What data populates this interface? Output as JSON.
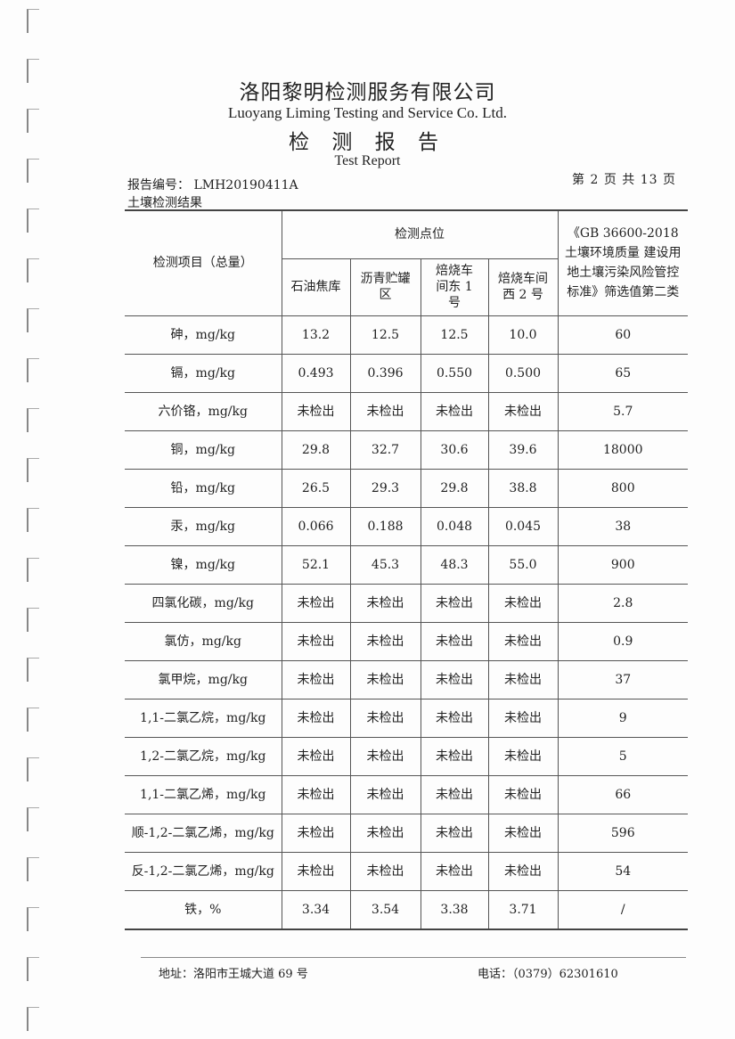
{
  "header": {
    "company_cn": "洛阳黎明检测服务有限公司",
    "company_en": "Luoyang Liming Testing and Service Co. Ltd.",
    "title_cn": "检 测 报 告",
    "title_en": "Test Report",
    "report_no": "报告编号： LMH20190411A",
    "page_info": "第 2 页 共 13 页",
    "section": "土壤检测结果"
  },
  "table": {
    "item_header": "检测项目（总量）",
    "points_header": "检测点位",
    "points": [
      "石油焦库",
      "沥青贮罐区",
      "焙烧车间东 1 号",
      "焙烧车间西 2 号"
    ],
    "standard_header": "《GB 36600-2018 土壤环境质量 建设用地土壤污染风险管控标准》筛选值第二类",
    "rows": [
      {
        "item": "砷，mg/kg",
        "values": [
          "13.2",
          "12.5",
          "12.5",
          "10.0"
        ],
        "limit": "60"
      },
      {
        "item": "镉，mg/kg",
        "values": [
          "0.493",
          "0.396",
          "0.550",
          "0.500"
        ],
        "limit": "65"
      },
      {
        "item": "六价铬，mg/kg",
        "values": [
          "未检出",
          "未检出",
          "未检出",
          "未检出"
        ],
        "limit": "5.7"
      },
      {
        "item": "铜，mg/kg",
        "values": [
          "29.8",
          "32.7",
          "30.6",
          "39.6"
        ],
        "limit": "18000"
      },
      {
        "item": "铅，mg/kg",
        "values": [
          "26.5",
          "29.3",
          "29.8",
          "38.8"
        ],
        "limit": "800"
      },
      {
        "item": "汞，mg/kg",
        "values": [
          "0.066",
          "0.188",
          "0.048",
          "0.045"
        ],
        "limit": "38"
      },
      {
        "item": "镍，mg/kg",
        "values": [
          "52.1",
          "45.3",
          "48.3",
          "55.0"
        ],
        "limit": "900"
      },
      {
        "item": "四氯化碳，mg/kg",
        "values": [
          "未检出",
          "未检出",
          "未检出",
          "未检出"
        ],
        "limit": "2.8"
      },
      {
        "item": "氯仿，mg/kg",
        "values": [
          "未检出",
          "未检出",
          "未检出",
          "未检出"
        ],
        "limit": "0.9"
      },
      {
        "item": "氯甲烷，mg/kg",
        "values": [
          "未检出",
          "未检出",
          "未检出",
          "未检出"
        ],
        "limit": "37"
      },
      {
        "item": "1,1-二氯乙烷，mg/kg",
        "values": [
          "未检出",
          "未检出",
          "未检出",
          "未检出"
        ],
        "limit": "9"
      },
      {
        "item": "1,2-二氯乙烷，mg/kg",
        "values": [
          "未检出",
          "未检出",
          "未检出",
          "未检出"
        ],
        "limit": "5"
      },
      {
        "item": "1,1-二氯乙烯，mg/kg",
        "values": [
          "未检出",
          "未检出",
          "未检出",
          "未检出"
        ],
        "limit": "66"
      },
      {
        "item": "顺-1,2-二氯乙烯，mg/kg",
        "values": [
          "未检出",
          "未检出",
          "未检出",
          "未检出"
        ],
        "limit": "596"
      },
      {
        "item": "反-1,2-二氯乙烯，mg/kg",
        "values": [
          "未检出",
          "未检出",
          "未检出",
          "未检出"
        ],
        "limit": "54"
      },
      {
        "item": "铁，%",
        "values": [
          "3.34",
          "3.54",
          "3.38",
          "3.71"
        ],
        "limit": "/"
      }
    ]
  },
  "footer": {
    "address": "地址：洛阳市王城大道 69 号",
    "phone": "电话：（0379）62301610"
  }
}
